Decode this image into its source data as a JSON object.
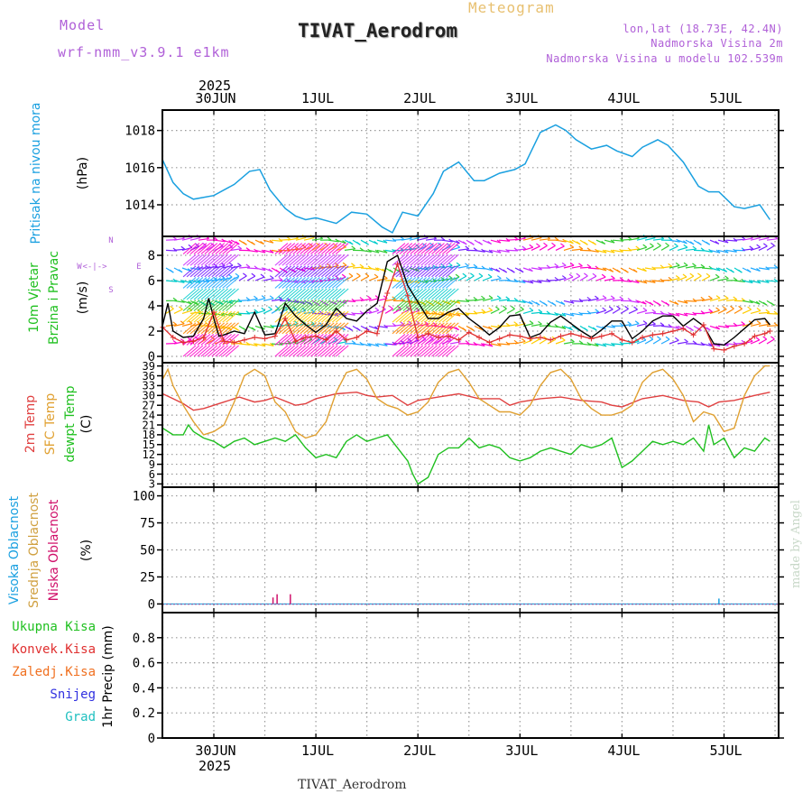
{
  "header": {
    "model_label": "Model",
    "model_name": "wrf-nmm_v3.9.1 e1km",
    "title": "TIVAT_Aerodrom",
    "meteogram": "Meteogram",
    "lonlat": "lon,lat (18.73E, 42.4N)",
    "elev_station": "Nadmorska Visina 2m",
    "elev_model": "Nadmorska Visina u modelu 102.539m",
    "footer_station": "TIVAT_Aerodrom",
    "watermark": "made by Angel"
  },
  "colors": {
    "pressure": "#1aa0e0",
    "wind_speed": "#000000",
    "gust": "#e03030",
    "temp2m": "#e04040",
    "sfc_temp": "#e0a030",
    "dewpoint": "#20c020",
    "cloud_high": "#1aa0e0",
    "cloud_mid": "#d0a040",
    "cloud_low": "#d0106a",
    "precip_total": "#20c020",
    "precip_conv": "#e03030",
    "precip_frozen": "#f07020",
    "precip_snow": "#3030e0",
    "precip_graupel": "#20c0c0"
  },
  "chart_data": [
    {
      "type": "line",
      "panel": "pressure",
      "title": "",
      "ylabel": "Pritisak na nivou mora",
      "unit": "(hPa)",
      "ylim": [
        1012.3,
        1019.1
      ],
      "yticks": [
        1014,
        1016,
        1018
      ],
      "date_top_year": "2025",
      "x_date_labels": [
        "30JUN",
        "1JUL",
        "2JUL",
        "3JUL",
        "4JUL",
        "5JUL"
      ],
      "x_unit": "day (0 = 30JUN 00UTC)",
      "grid": true,
      "series": [
        {
          "name": "",
          "x": [
            -0.5,
            -0.4,
            -0.3,
            -0.2,
            -0.1,
            0.0,
            0.2,
            0.35,
            0.45,
            0.55,
            0.7,
            0.8,
            0.9,
            1.0,
            1.2,
            1.35,
            1.5,
            1.65,
            1.75,
            1.85,
            2.0,
            2.15,
            2.25,
            2.4,
            2.55,
            2.65,
            2.8,
            2.95,
            3.05,
            3.2,
            3.35,
            3.45,
            3.55,
            3.7,
            3.85,
            3.95,
            4.1,
            4.2,
            4.35,
            4.45,
            4.6,
            4.75,
            4.85,
            4.95,
            5.1,
            5.2,
            5.35,
            5.45
          ],
          "values": [
            1016.4,
            1015.2,
            1014.6,
            1014.3,
            1014.4,
            1014.5,
            1015.1,
            1015.8,
            1015.9,
            1014.8,
            1013.8,
            1013.4,
            1013.2,
            1013.3,
            1013.0,
            1013.6,
            1013.5,
            1012.8,
            1012.5,
            1013.6,
            1013.4,
            1014.6,
            1015.8,
            1016.3,
            1015.3,
            1015.3,
            1015.7,
            1015.9,
            1016.2,
            1017.9,
            1018.3,
            1018.0,
            1017.5,
            1017.0,
            1017.2,
            1016.9,
            1016.6,
            1017.1,
            1017.5,
            1017.2,
            1016.3,
            1015.0,
            1014.7,
            1014.7,
            1013.9,
            1013.8,
            1014.0,
            1013.2
          ]
        }
      ]
    },
    {
      "type": "line",
      "panel": "wind",
      "title": "",
      "ylabel_lines": [
        "10m Vjetar",
        "Brzina i Pravac"
      ],
      "unit": "(m/s)",
      "compass": [
        "N",
        "W",
        "<-|->",
        "E",
        "S"
      ],
      "ylim": [
        -0.5,
        9.5
      ],
      "yticks": [
        0,
        2,
        4,
        6,
        8
      ],
      "grid": true,
      "series": [
        {
          "name": "",
          "x": [
            -0.5,
            -0.45,
            -0.4,
            -0.3,
            -0.2,
            -0.1,
            -0.05,
            0.0,
            0.05,
            0.1,
            0.2,
            0.3,
            0.4,
            0.5,
            0.6,
            0.7,
            0.8,
            0.9,
            1.0,
            1.1,
            1.2,
            1.3,
            1.4,
            1.5,
            1.6,
            1.7,
            1.8,
            1.9,
            2.0,
            2.1,
            2.2,
            2.3,
            2.4,
            2.5,
            2.6,
            2.7,
            2.8,
            2.9,
            3.0,
            3.1,
            3.2,
            3.3,
            3.4,
            3.5,
            3.6,
            3.7,
            3.8,
            3.9,
            4.0,
            4.1,
            4.2,
            4.3,
            4.4,
            4.5,
            4.6,
            4.7,
            4.8,
            4.9,
            5.0,
            5.1,
            5.2,
            5.3,
            5.4,
            5.45
          ],
          "values": [
            2.5,
            4.2,
            2.0,
            1.5,
            1.6,
            3.0,
            4.6,
            3.0,
            1.6,
            1.7,
            2.0,
            1.8,
            3.5,
            1.7,
            1.8,
            4.2,
            3.2,
            2.5,
            1.9,
            2.5,
            3.8,
            3.0,
            2.8,
            3.6,
            4.2,
            7.5,
            8.0,
            5.6,
            4.3,
            3.0,
            3.0,
            3.5,
            3.8,
            3.0,
            2.4,
            1.7,
            2.3,
            3.2,
            3.3,
            1.5,
            1.8,
            2.7,
            3.2,
            2.6,
            2.0,
            1.5,
            2.1,
            2.8,
            2.8,
            1.4,
            2.0,
            2.8,
            3.2,
            3.2,
            2.4,
            3.0,
            2.4,
            1.0,
            0.9,
            1.5,
            2.2,
            2.9,
            3.0,
            2.5
          ]
        },
        {
          "name": "",
          "x": [
            -0.5,
            -0.4,
            -0.3,
            -0.2,
            -0.1,
            0.0,
            0.1,
            0.2,
            0.3,
            0.4,
            0.5,
            0.6,
            0.7,
            0.8,
            0.9,
            1.0,
            1.1,
            1.2,
            1.3,
            1.4,
            1.5,
            1.6,
            1.7,
            1.8,
            1.9,
            2.0,
            2.1,
            2.2,
            2.3,
            2.4,
            2.5,
            2.6,
            2.7,
            2.8,
            2.9,
            3.0,
            3.1,
            3.2,
            3.3,
            3.4,
            3.5,
            3.6,
            3.7,
            3.8,
            3.9,
            4.0,
            4.1,
            4.2,
            4.3,
            4.4,
            4.5,
            4.6,
            4.7,
            4.8,
            4.9,
            5.0,
            5.1,
            5.2,
            5.3,
            5.4,
            5.45
          ],
          "values": [
            2.3,
            1.5,
            1.1,
            1.2,
            1.5,
            3.5,
            1.2,
            1.1,
            1.3,
            1.5,
            1.4,
            1.6,
            3.0,
            1.2,
            1.5,
            1.6,
            1.3,
            2.0,
            1.3,
            1.5,
            2.0,
            1.8,
            5.0,
            7.3,
            4.8,
            1.5,
            1.8,
            1.5,
            1.6,
            1.3,
            1.9,
            1.5,
            1.1,
            1.4,
            1.7,
            1.6,
            1.4,
            1.5,
            1.3,
            1.6,
            1.8,
            1.6,
            1.4,
            1.6,
            1.8,
            1.3,
            1.1,
            1.5,
            1.7,
            1.8,
            2.0,
            2.2,
            1.7,
            2.5,
            0.6,
            0.5,
            0.8,
            1.0,
            1.6,
            1.8,
            2.0
          ]
        }
      ],
      "wind_arrow_rows_ms": [
        1,
        2.4,
        3.4,
        4.4,
        6.0,
        7.0,
        8.4,
        9.2
      ]
    },
    {
      "type": "line",
      "panel": "temperature",
      "title": "",
      "ylabel_lines": [
        "2m Temp",
        "SFC Temp",
        "dewpt Temp"
      ],
      "unit": "(C)",
      "ylim": [
        2,
        40
      ],
      "yticks": [
        3,
        6,
        9,
        12,
        15,
        18,
        21,
        24,
        27,
        30,
        33,
        36,
        39
      ],
      "grid": true,
      "series": [
        {
          "name": "2m Temp",
          "x": [
            -0.5,
            -0.4,
            -0.3,
            -0.2,
            -0.1,
            0.0,
            0.1,
            0.25,
            0.4,
            0.5,
            0.6,
            0.8,
            0.9,
            1.0,
            1.2,
            1.4,
            1.5,
            1.6,
            1.75,
            1.9,
            2.0,
            2.2,
            2.4,
            2.6,
            2.8,
            2.9,
            3.0,
            3.2,
            3.4,
            3.6,
            3.8,
            3.9,
            4.0,
            4.2,
            4.4,
            4.6,
            4.75,
            4.85,
            4.95,
            5.1,
            5.3,
            5.45
          ],
          "values": [
            30.5,
            29.0,
            27.5,
            25.5,
            26.0,
            27.0,
            28.0,
            29.5,
            28.0,
            28.5,
            29.5,
            27.0,
            27.5,
            29.0,
            30.5,
            31.0,
            30.0,
            29.5,
            30.0,
            27.0,
            28.5,
            29.5,
            30.5,
            29.0,
            29.0,
            27.0,
            28.0,
            29.0,
            29.5,
            28.5,
            28.0,
            27.0,
            26.5,
            29.0,
            30.0,
            28.5,
            28.0,
            26.5,
            28.0,
            28.5,
            30.0,
            31.0
          ]
        },
        {
          "name": "SFC Temp",
          "x": [
            -0.5,
            -0.45,
            -0.4,
            -0.3,
            -0.2,
            -0.1,
            0.0,
            0.1,
            0.2,
            0.3,
            0.4,
            0.5,
            0.6,
            0.7,
            0.8,
            0.9,
            1.0,
            1.1,
            1.2,
            1.3,
            1.4,
            1.5,
            1.6,
            1.7,
            1.8,
            1.9,
            2.0,
            2.1,
            2.2,
            2.3,
            2.4,
            2.5,
            2.6,
            2.7,
            2.8,
            2.9,
            3.0,
            3.1,
            3.2,
            3.3,
            3.4,
            3.5,
            3.6,
            3.7,
            3.8,
            3.9,
            4.0,
            4.1,
            4.2,
            4.3,
            4.4,
            4.5,
            4.6,
            4.7,
            4.8,
            4.9,
            5.0,
            5.1,
            5.2,
            5.3,
            5.4,
            5.45
          ],
          "values": [
            35,
            38,
            33,
            27,
            22,
            18,
            19,
            21,
            28,
            36,
            38,
            36,
            28,
            25,
            19,
            17,
            18,
            22,
            31,
            37,
            38,
            35,
            29,
            27,
            26,
            24,
            25,
            28,
            34,
            37,
            38,
            34,
            29,
            27,
            25,
            25,
            24,
            27,
            33,
            37,
            38,
            35,
            29,
            26,
            24,
            24,
            25,
            27,
            34,
            37,
            38,
            35,
            30,
            22,
            25,
            24,
            19,
            20,
            30,
            36,
            39,
            39
          ]
        },
        {
          "name": "dewpt Temp",
          "x": [
            -0.5,
            -0.4,
            -0.3,
            -0.25,
            -0.2,
            -0.1,
            0.0,
            0.1,
            0.2,
            0.3,
            0.4,
            0.5,
            0.6,
            0.7,
            0.8,
            0.9,
            1.0,
            1.1,
            1.2,
            1.3,
            1.4,
            1.5,
            1.6,
            1.7,
            1.8,
            1.9,
            1.95,
            2.0,
            2.1,
            2.2,
            2.3,
            2.4,
            2.5,
            2.6,
            2.7,
            2.8,
            2.9,
            3.0,
            3.1,
            3.2,
            3.3,
            3.4,
            3.5,
            3.6,
            3.7,
            3.8,
            3.9,
            4.0,
            4.1,
            4.2,
            4.3,
            4.4,
            4.5,
            4.6,
            4.7,
            4.8,
            4.85,
            4.9,
            5.0,
            5.1,
            5.2,
            5.3,
            5.4,
            5.45
          ],
          "values": [
            20,
            18,
            18,
            21,
            19,
            17,
            16,
            14,
            16,
            17,
            15,
            16,
            17,
            16,
            18,
            14,
            11,
            12,
            11,
            16,
            18,
            16,
            17,
            18,
            14,
            10,
            6,
            3,
            5,
            12,
            14,
            14,
            17,
            14,
            15,
            14,
            11,
            10,
            11,
            13,
            14,
            13,
            12,
            15,
            14,
            15,
            17,
            8,
            10,
            13,
            16,
            15,
            16,
            15,
            17,
            13,
            21,
            15,
            17,
            11,
            14,
            13,
            17,
            16
          ]
        }
      ]
    },
    {
      "type": "bar",
      "panel": "cloud_cover",
      "title": "",
      "ylabel_lines": [
        "Visoka Oblacnost",
        "Srednja Oblacnost",
        "Niska Oblacnost"
      ],
      "unit": "(%)",
      "ylim": [
        -8,
        108
      ],
      "yticks": [
        0,
        25,
        50,
        75,
        100
      ],
      "grid": true,
      "series": [
        {
          "name": "Visoka Oblacnost",
          "x": [
            4.95
          ],
          "values": [
            5
          ]
        },
        {
          "name": "Srednja Oblacnost",
          "x": [],
          "values": []
        },
        {
          "name": "Niska Oblacnost",
          "x": [
            0.58,
            0.62,
            0.75
          ],
          "values": [
            6,
            9,
            9
          ]
        }
      ]
    },
    {
      "type": "bar",
      "panel": "precipitation",
      "title": "",
      "ylabel": "1hr Precip (mm)",
      "ylim": [
        0,
        1.0
      ],
      "yticks": [
        0,
        0.2,
        0.4,
        0.6,
        0.8
      ],
      "grid": true,
      "x_date_labels": [
        "30JUN",
        "1JUL",
        "2JUL",
        "3JUL",
        "4JUL",
        "5JUL"
      ],
      "date_bottom_year": "2025",
      "legend": [
        "Ukupna Kisa",
        "Konvek.Kisa",
        "Zaledj.Kisa",
        "Snijeg",
        "Grad"
      ],
      "series": []
    }
  ]
}
